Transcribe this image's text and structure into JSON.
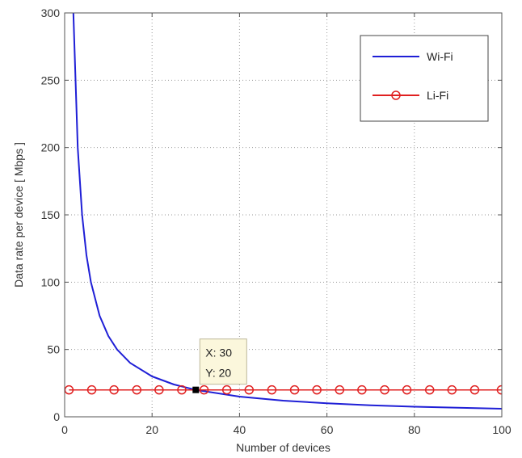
{
  "chart_data": {
    "type": "line",
    "xlabel": "Number of devices",
    "ylabel": "Data rate per device [ Mbps ]",
    "xlim": [
      0,
      100
    ],
    "ylim": [
      0,
      300
    ],
    "xticks": [
      0,
      20,
      40,
      60,
      80,
      100
    ],
    "yticks": [
      0,
      50,
      100,
      150,
      200,
      250,
      300
    ],
    "grid": true,
    "legend_position": "top-right",
    "series": [
      {
        "name": "Wi-Fi",
        "color": "#1f1fd6",
        "marker": "none",
        "x": [
          1,
          2,
          3,
          4,
          5,
          6,
          8,
          10,
          12,
          15,
          20,
          25,
          30,
          40,
          50,
          60,
          70,
          80,
          90,
          100
        ],
        "y": [
          600,
          300,
          200,
          150,
          120,
          100,
          75,
          60,
          50,
          40,
          30,
          24,
          20,
          15,
          12,
          10,
          8.6,
          7.5,
          6.7,
          6
        ]
      },
      {
        "name": "Li-Fi",
        "color": "#e02020",
        "marker": "circle",
        "x": [
          1,
          6.2,
          11.3,
          16.5,
          21.6,
          26.8,
          31.9,
          37.1,
          42.2,
          47.4,
          52.6,
          57.7,
          62.9,
          68.0,
          73.2,
          78.3,
          83.5,
          88.6,
          93.8,
          99.9
        ],
        "y": [
          20,
          20,
          20,
          20,
          20,
          20,
          20,
          20,
          20,
          20,
          20,
          20,
          20,
          20,
          20,
          20,
          20,
          20,
          20,
          20
        ]
      }
    ],
    "datatip": {
      "x": 30,
      "y": 20,
      "x_text": "X: 30",
      "y_text": "Y: 20"
    }
  }
}
